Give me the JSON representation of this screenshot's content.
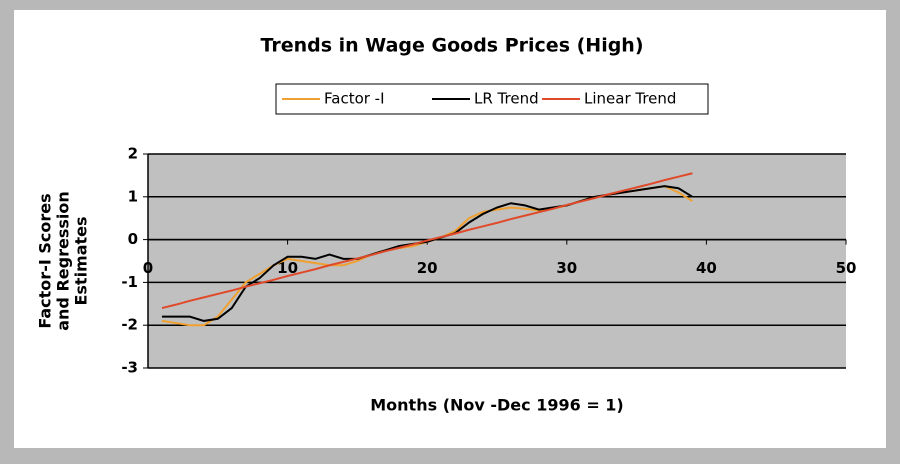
{
  "chart_data": {
    "type": "line",
    "title": "Trends in Wage Goods Prices (High)",
    "x_label": "Months (Nov -Dec 1996 = 1)",
    "y_label": [
      "Factor-I Scores",
      "and Regression",
      "Estimates"
    ],
    "x": [
      1,
      2,
      3,
      4,
      5,
      6,
      7,
      8,
      9,
      10,
      11,
      12,
      13,
      14,
      15,
      16,
      17,
      18,
      19,
      20,
      21,
      22,
      23,
      24,
      25,
      26,
      27,
      28,
      29,
      30,
      31,
      32,
      33,
      34,
      35,
      36,
      37,
      38,
      39
    ],
    "series": [
      {
        "name": "Factor -I",
        "color": "#f0a030",
        "values": [
          -1.9,
          -1.95,
          -2.0,
          -2.0,
          -1.8,
          -1.4,
          -1.0,
          -0.8,
          -0.6,
          -0.45,
          -0.5,
          -0.55,
          -0.6,
          -0.6,
          -0.5,
          -0.35,
          -0.25,
          -0.2,
          -0.15,
          -0.05,
          0.05,
          0.2,
          0.5,
          0.65,
          0.7,
          0.75,
          0.72,
          0.68,
          0.72,
          0.8,
          0.9,
          1.0,
          1.05,
          1.1,
          1.15,
          1.2,
          1.25,
          1.1,
          0.9
        ]
      },
      {
        "name": "LR Trend",
        "color": "#000000",
        "values": [
          -1.8,
          -1.8,
          -1.8,
          -1.9,
          -1.85,
          -1.6,
          -1.1,
          -0.9,
          -0.6,
          -0.4,
          -0.4,
          -0.45,
          -0.35,
          -0.45,
          -0.45,
          -0.35,
          -0.25,
          -0.15,
          -0.1,
          -0.05,
          0.05,
          0.15,
          0.4,
          0.6,
          0.75,
          0.85,
          0.8,
          0.7,
          0.75,
          0.8,
          0.9,
          1.0,
          1.05,
          1.1,
          1.15,
          1.2,
          1.25,
          1.2,
          1.0
        ]
      },
      {
        "name": "Linear Trend",
        "color": "#e04a2a",
        "values": [
          -1.6,
          -1.52,
          -1.43,
          -1.35,
          -1.27,
          -1.19,
          -1.1,
          -1.02,
          -0.94,
          -0.85,
          -0.77,
          -0.69,
          -0.6,
          -0.52,
          -0.44,
          -0.36,
          -0.27,
          -0.19,
          -0.11,
          -0.02,
          0.06,
          0.14,
          0.23,
          0.31,
          0.39,
          0.48,
          0.56,
          0.64,
          0.72,
          0.81,
          0.89,
          0.97,
          1.06,
          1.14,
          1.22,
          1.3,
          1.39,
          1.47,
          1.55
        ]
      }
    ],
    "xlim": [
      0,
      50
    ],
    "xticks": [
      0,
      10,
      20,
      30,
      40,
      50
    ],
    "ylim": [
      -3,
      2
    ],
    "yticks": [
      -3,
      -2,
      -1,
      0,
      1,
      2
    ],
    "grid": true,
    "legend": "top"
  }
}
